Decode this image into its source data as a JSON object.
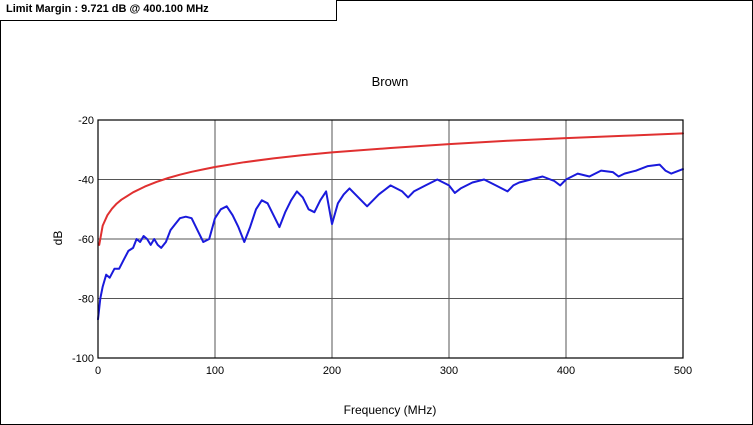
{
  "header": {
    "limit_margin_text": "Limit Margin : 9.721 dB @ 400.100 MHz"
  },
  "chart_data": {
    "type": "line",
    "title": "Brown",
    "xlabel": "Frequency (MHz)",
    "ylabel": "dB",
    "xlim": [
      0,
      500
    ],
    "ylim": [
      -100,
      -20
    ],
    "xticks": [
      0,
      100,
      200,
      300,
      400,
      500
    ],
    "yticks": [
      -100,
      -80,
      -60,
      -40,
      -20
    ],
    "grid": true,
    "legend": "none",
    "series": [
      {
        "color": "#e03030",
        "x": [
          1,
          4,
          8,
          12,
          16,
          20,
          30,
          40,
          50,
          60,
          70,
          80,
          90,
          100,
          125,
          150,
          175,
          200,
          250,
          300,
          350,
          400,
          450,
          500
        ],
        "y": [
          -62,
          -55.5,
          -52,
          -49.8,
          -48.1,
          -46.8,
          -44.3,
          -42.4,
          -40.8,
          -39.5,
          -38.4,
          -37.4,
          -36.6,
          -35.8,
          -34.2,
          -32.9,
          -31.8,
          -30.9,
          -29.4,
          -28.1,
          -27.0,
          -26.1,
          -25.3,
          -24.5
        ]
      },
      {
        "color": "#1a1adc",
        "x": [
          0,
          2,
          4,
          7,
          10,
          14,
          18,
          22,
          26,
          30,
          33,
          36,
          39,
          42,
          45,
          48,
          51,
          54,
          58,
          62,
          66,
          70,
          75,
          80,
          85,
          90,
          95,
          100,
          105,
          110,
          115,
          120,
          125,
          130,
          135,
          140,
          145,
          150,
          155,
          160,
          165,
          170,
          175,
          180,
          185,
          190,
          195,
          200,
          205,
          210,
          215,
          220,
          230,
          240,
          250,
          260,
          265,
          270,
          280,
          290,
          300,
          305,
          310,
          320,
          330,
          340,
          350,
          355,
          360,
          370,
          380,
          390,
          395,
          400,
          410,
          420,
          430,
          440,
          445,
          450,
          460,
          470,
          480,
          485,
          490,
          500
        ],
        "y": [
          -87,
          -80,
          -76,
          -72,
          -73,
          -70,
          -70,
          -67,
          -64,
          -63,
          -60,
          -61,
          -59,
          -60,
          -62,
          -60,
          -62,
          -63,
          -61,
          -57,
          -55,
          -53,
          -52.5,
          -53,
          -57,
          -61,
          -60,
          -53,
          -50,
          -49,
          -52,
          -56,
          -61,
          -56,
          -50,
          -47,
          -48,
          -52,
          -56,
          -51,
          -47,
          -44,
          -46,
          -50,
          -51,
          -47,
          -44,
          -55,
          -48,
          -45,
          -43,
          -45,
          -49,
          -45,
          -42,
          -44,
          -46,
          -44,
          -42,
          -40,
          -42,
          -44.5,
          -43,
          -41,
          -40,
          -42,
          -44,
          -42,
          -41,
          -40,
          -39,
          -40.5,
          -42,
          -40,
          -38,
          -39,
          -37,
          -37.5,
          -39,
          -38,
          -37,
          -35.5,
          -35,
          -37,
          -38,
          -36.5
        ]
      }
    ]
  }
}
